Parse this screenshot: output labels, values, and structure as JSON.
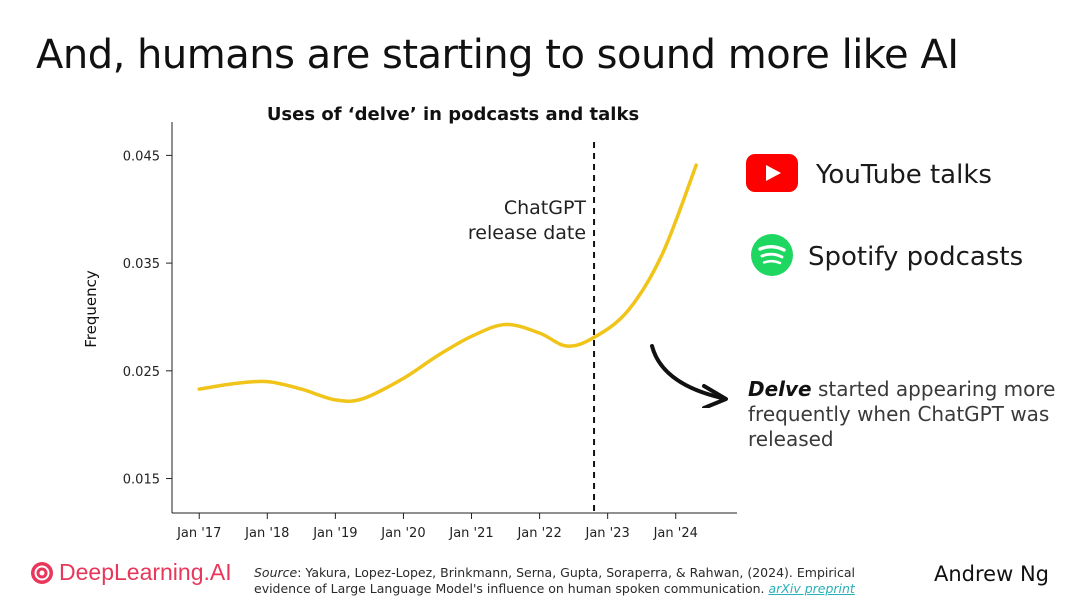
{
  "slide": {
    "title": "And, humans are starting to sound more like AI",
    "author": "Andrew Ng",
    "logo_text": "DeepLearning.AI"
  },
  "legend": {
    "items": [
      {
        "label": "YouTube talks",
        "icon": "youtube-icon",
        "color": "#ff0000"
      },
      {
        "label": "Spotify podcasts",
        "icon": "spotify-icon",
        "color": "#1ed760"
      }
    ]
  },
  "callout": {
    "bold": "Delve",
    "rest": " started appearing more frequently when ChatGPT was released"
  },
  "source": {
    "label": "Source",
    "text": ": Yakura, Lopez-Lopez, Brinkmann, Serna, Gupta, Soraperra, & Rahwan, (2024). Empirical evidence of Large Language Model's influence on human spoken communication. ",
    "link_text": "arXiv preprint"
  },
  "chart_data": {
    "type": "line",
    "title": "Uses of ‘delve’ in podcasts and talks",
    "xlabel": "",
    "ylabel": "Frequency",
    "x_ticks": [
      {
        "label": "Jan '17",
        "value": 2017.0
      },
      {
        "label": "Jan '18",
        "value": 2018.0
      },
      {
        "label": "Jan '19",
        "value": 2019.0
      },
      {
        "label": "Jan '20",
        "value": 2020.0
      },
      {
        "label": "Jan '21",
        "value": 2021.0
      },
      {
        "label": "Jan '22",
        "value": 2022.0
      },
      {
        "label": "Jan '23",
        "value": 2023.0
      },
      {
        "label": "Jan '24",
        "value": 2024.0
      }
    ],
    "y_ticks": [
      {
        "label": "0.015",
        "value": 0.015
      },
      {
        "label": "0.025",
        "value": 0.025
      },
      {
        "label": "0.035",
        "value": 0.035
      },
      {
        "label": "0.045",
        "value": 0.045
      }
    ],
    "xlim": [
      2016.6,
      2024.9
    ],
    "ylim": [
      0.0118,
      0.0481
    ],
    "series": [
      {
        "color": "#f0c419",
        "points": [
          [
            2017.0,
            0.0233
          ],
          [
            2017.5,
            0.0238
          ],
          [
            2018.0,
            0.024
          ],
          [
            2018.5,
            0.0233
          ],
          [
            2019.0,
            0.0223
          ],
          [
            2019.4,
            0.0224
          ],
          [
            2020.0,
            0.0243
          ],
          [
            2020.5,
            0.0264
          ],
          [
            2021.0,
            0.0282
          ],
          [
            2021.5,
            0.0293
          ],
          [
            2022.0,
            0.0285
          ],
          [
            2022.4,
            0.0273
          ],
          [
            2022.8,
            0.0281
          ],
          [
            2023.3,
            0.0306
          ],
          [
            2023.8,
            0.0358
          ],
          [
            2024.3,
            0.0441
          ]
        ]
      }
    ],
    "annotations": [
      {
        "type": "vline",
        "x": 2022.8,
        "style": "dashed",
        "label_lines": [
          "ChatGPT",
          "release date"
        ]
      }
    ],
    "grid": false
  }
}
